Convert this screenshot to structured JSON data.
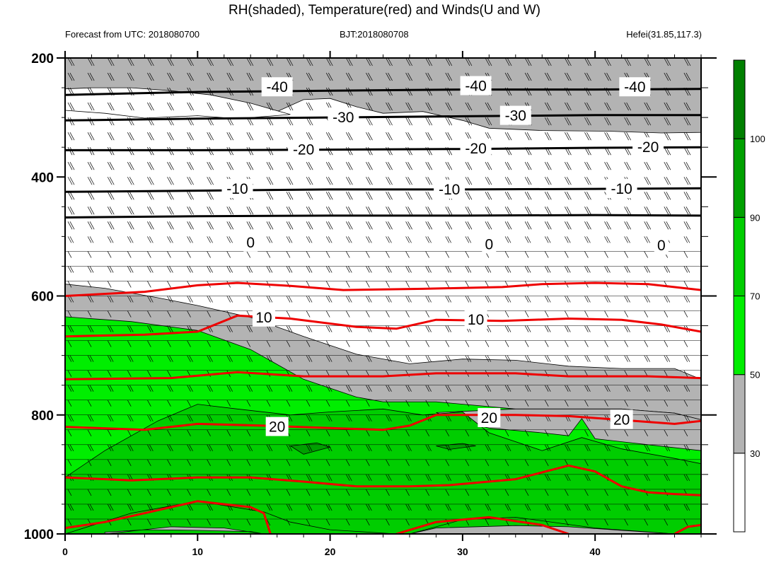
{
  "header": {
    "title": "RH(shaded), Temperature(red) and Winds(U and W)",
    "forecast": "Forecast from UTC: 2018080700",
    "bjt": "BJT:2018080708",
    "location": "Hefei(31.85,117.3)"
  },
  "chart_data": {
    "type": "heatmap",
    "x": {
      "min": 0,
      "max": 48,
      "ticks": [
        0,
        10,
        20,
        30,
        40
      ]
    },
    "y": {
      "min": 200,
      "max": 1000,
      "inverted": true,
      "ticks": [
        200,
        400,
        600,
        800,
        1000
      ]
    },
    "colorbar": {
      "levels": [
        30,
        50,
        70,
        90,
        100
      ],
      "colors": [
        "#ffffff",
        "#b3b3b3",
        "#00ee00",
        "#00cd00",
        "#00a000",
        "#007f00"
      ]
    },
    "shading": [
      {
        "level": 50,
        "color": "#b3b3b3",
        "pts": [
          [
            0,
            200
          ],
          [
            48,
            200
          ],
          [
            48,
            325
          ],
          [
            45,
            326
          ],
          [
            41,
            323
          ],
          [
            36,
            322
          ],
          [
            32,
            318
          ],
          [
            30,
            305
          ],
          [
            27,
            290
          ],
          [
            24,
            293
          ],
          [
            22,
            282
          ],
          [
            20,
            268
          ],
          [
            18,
            270
          ],
          [
            16,
            290
          ],
          [
            13,
            300
          ],
          [
            10,
            295
          ],
          [
            6,
            300
          ],
          [
            3,
            290
          ],
          [
            0,
            285
          ]
        ]
      },
      {
        "level": 50,
        "color": "#b3b3b3",
        "pts": [
          [
            0,
            580
          ],
          [
            3,
            587
          ],
          [
            7,
            603
          ],
          [
            10,
            616
          ],
          [
            14,
            636
          ],
          [
            18,
            668
          ],
          [
            22,
            698
          ],
          [
            26,
            714
          ],
          [
            30,
            706
          ],
          [
            34,
            708
          ],
          [
            38,
            718
          ],
          [
            42,
            722
          ],
          [
            46,
            722
          ],
          [
            48,
            740
          ],
          [
            48,
            1000
          ],
          [
            0,
            1000
          ]
        ]
      },
      {
        "level": 50,
        "color": "#ffffff",
        "pts": [
          [
            0,
            288
          ],
          [
            3,
            293
          ],
          [
            6,
            301
          ],
          [
            10,
            297
          ],
          [
            13,
            302
          ],
          [
            17,
            295
          ],
          [
            14,
            276
          ],
          [
            11,
            262
          ],
          [
            8,
            255
          ],
          [
            5,
            250
          ],
          [
            2,
            250
          ],
          [
            0,
            252
          ]
        ]
      },
      {
        "level": 50,
        "color": "#ffffff",
        "pts": [
          [
            3,
            1000
          ],
          [
            8,
            988
          ],
          [
            12,
            990
          ],
          [
            15,
            1000
          ]
        ]
      },
      {
        "level": 70,
        "color": "#00ee00",
        "pts": [
          [
            0,
            635
          ],
          [
            5,
            643
          ],
          [
            10,
            658
          ],
          [
            14,
            690
          ],
          [
            18,
            740
          ],
          [
            22,
            770
          ],
          [
            24,
            778
          ],
          [
            28,
            778
          ],
          [
            34,
            790
          ],
          [
            38,
            790
          ],
          [
            42,
            790
          ],
          [
            46,
            797
          ],
          [
            48,
            808
          ],
          [
            48,
            1000
          ],
          [
            0,
            1000
          ]
        ]
      },
      {
        "level": 70,
        "color": "#b3b3b3",
        "pts": [
          [
            32,
            822
          ],
          [
            36,
            830
          ],
          [
            38,
            835
          ],
          [
            39,
            806
          ],
          [
            40,
            840
          ],
          [
            44,
            850
          ],
          [
            48,
            860
          ],
          [
            48,
            808
          ],
          [
            46,
            797
          ],
          [
            42,
            790
          ],
          [
            38,
            790
          ],
          [
            34,
            790
          ],
          [
            28,
            796
          ],
          [
            30,
            812
          ]
        ]
      },
      {
        "level": 90,
        "color": "#00cd00",
        "pts": [
          [
            0,
            905
          ],
          [
            3,
            860
          ],
          [
            7,
            810
          ],
          [
            10,
            782
          ],
          [
            13,
            790
          ],
          [
            17,
            800
          ],
          [
            20,
            795
          ],
          [
            24,
            790
          ],
          [
            27,
            800
          ],
          [
            30,
            795
          ],
          [
            32,
            830
          ],
          [
            36,
            860
          ],
          [
            39,
            838
          ],
          [
            42,
            857
          ],
          [
            46,
            873
          ],
          [
            48,
            882
          ],
          [
            48,
            1000
          ],
          [
            0,
            1000
          ]
        ]
      },
      {
        "level": 95,
        "color": "#00a000",
        "pts": [
          [
            17,
            852
          ],
          [
            19,
            847
          ],
          [
            20,
            854
          ],
          [
            18,
            866
          ]
        ]
      },
      {
        "level": 95,
        "color": "#00a000",
        "pts": [
          [
            28,
            852
          ],
          [
            30,
            848
          ],
          [
            31,
            852
          ],
          [
            29,
            858
          ]
        ]
      },
      {
        "level": 95,
        "color": "#00cd00",
        "pts": [
          [
            0,
            1000
          ],
          [
            5,
            965
          ],
          [
            10,
            945
          ],
          [
            15,
            963
          ],
          [
            17,
            980
          ],
          [
            20,
            993
          ],
          [
            25,
            1000
          ]
        ]
      },
      {
        "level": 95,
        "color": "#00cd00",
        "pts": [
          [
            26,
            1000
          ],
          [
            30,
            976
          ],
          [
            34,
            972
          ],
          [
            40,
            990
          ],
          [
            46,
            1000
          ]
        ]
      },
      {
        "level": 95,
        "color": "#b3b3b3",
        "pts": [
          [
            3,
            1000
          ],
          [
            8,
            988
          ],
          [
            12,
            990
          ],
          [
            15,
            1000
          ],
          [
            14,
            996
          ],
          [
            10,
            994
          ],
          [
            6,
            993
          ],
          [
            3,
            997
          ]
        ]
      },
      {
        "level": 95,
        "color": "#b3b3b3",
        "pts": [
          [
            26,
            1000
          ],
          [
            28,
            990
          ],
          [
            34,
            986
          ],
          [
            38,
            988
          ],
          [
            46,
            1000
          ]
        ]
      }
    ],
    "isotherms": [
      {
        "color": "#000000",
        "label": "-40",
        "labels_at": [
          [
            16,
            249
          ],
          [
            31,
            247
          ],
          [
            43,
            249
          ]
        ],
        "pts": [
          [
            0,
            262
          ],
          [
            10,
            257
          ],
          [
            20,
            255
          ],
          [
            30,
            253
          ],
          [
            40,
            253
          ],
          [
            48,
            252
          ]
        ]
      },
      {
        "color": "#000000",
        "label": "-30",
        "labels_at": [
          [
            21,
            300
          ],
          [
            34,
            297
          ]
        ],
        "pts": [
          [
            0,
            305
          ],
          [
            10,
            302
          ],
          [
            20,
            300
          ],
          [
            30,
            298
          ],
          [
            40,
            296
          ],
          [
            48,
            296
          ]
        ]
      },
      {
        "color": "#000000",
        "label": "-20",
        "labels_at": [
          [
            18,
            354
          ],
          [
            31,
            352
          ],
          [
            44,
            350
          ]
        ],
        "pts": [
          [
            0,
            355
          ],
          [
            10,
            355
          ],
          [
            20,
            354
          ],
          [
            30,
            353
          ],
          [
            40,
            351
          ],
          [
            48,
            350
          ]
        ]
      },
      {
        "color": "#000000",
        "label": "-10",
        "labels_at": [
          [
            13,
            420
          ],
          [
            29,
            421
          ],
          [
            42,
            420
          ]
        ],
        "pts": [
          [
            0,
            425
          ],
          [
            10,
            423
          ],
          [
            20,
            421
          ],
          [
            30,
            421
          ],
          [
            40,
            420
          ],
          [
            48,
            419
          ]
        ]
      },
      {
        "color": "#000000",
        "label": "0",
        "labels_at": [
          [
            14,
            510
          ],
          [
            32,
            513
          ],
          [
            45,
            515
          ]
        ],
        "pts": [
          [
            0,
            468
          ],
          [
            10,
            466
          ],
          [
            20,
            465
          ],
          [
            30,
            465
          ],
          [
            40,
            464
          ],
          [
            48,
            465
          ]
        ]
      },
      {
        "color": "#ee0000",
        "label": "",
        "labels_at": [],
        "pts": [
          [
            0,
            600
          ],
          [
            6,
            593
          ],
          [
            10,
            582
          ],
          [
            13,
            578
          ],
          [
            17,
            583
          ],
          [
            21,
            590
          ],
          [
            27,
            588
          ],
          [
            33,
            585
          ],
          [
            36,
            580
          ],
          [
            40,
            578
          ],
          [
            44,
            580
          ],
          [
            48,
            590
          ]
        ]
      },
      {
        "color": "#ee0000",
        "label": "10",
        "labels_at": [
          [
            15,
            636
          ],
          [
            31,
            640
          ]
        ],
        "pts": [
          [
            0,
            668
          ],
          [
            6,
            665
          ],
          [
            10,
            660
          ],
          [
            13,
            633
          ],
          [
            17,
            638
          ],
          [
            22,
            652
          ],
          [
            25,
            655
          ],
          [
            28,
            640
          ],
          [
            33,
            642
          ],
          [
            38,
            638
          ],
          [
            42,
            640
          ],
          [
            45,
            648
          ],
          [
            48,
            660
          ]
        ]
      },
      {
        "color": "#ee0000",
        "label": "",
        "labels_at": [],
        "pts": [
          [
            0,
            740
          ],
          [
            8,
            738
          ],
          [
            13,
            728
          ],
          [
            18,
            735
          ],
          [
            24,
            735
          ],
          [
            28,
            730
          ],
          [
            34,
            730
          ],
          [
            38,
            735
          ],
          [
            44,
            735
          ],
          [
            48,
            738
          ]
        ]
      },
      {
        "color": "#ee0000",
        "label": "20",
        "labels_at": [
          [
            16,
            820
          ],
          [
            32,
            805
          ],
          [
            42,
            808
          ]
        ],
        "pts": [
          [
            0,
            820
          ],
          [
            6,
            825
          ],
          [
            10,
            815
          ],
          [
            15,
            818
          ],
          [
            20,
            822
          ],
          [
            24,
            825
          ],
          [
            26,
            818
          ],
          [
            28,
            800
          ],
          [
            34,
            800
          ],
          [
            38,
            802
          ],
          [
            43,
            810
          ],
          [
            46,
            815
          ],
          [
            48,
            810
          ]
        ]
      },
      {
        "color": "#ee0000",
        "label": "",
        "labels_at": [],
        "pts": [
          [
            0,
            905
          ],
          [
            5,
            910
          ],
          [
            10,
            905
          ],
          [
            14,
            905
          ],
          [
            18,
            912
          ],
          [
            22,
            920
          ],
          [
            26,
            920
          ],
          [
            29,
            918
          ],
          [
            34,
            908
          ],
          [
            38,
            885
          ],
          [
            40,
            895
          ],
          [
            42,
            920
          ],
          [
            44,
            930
          ],
          [
            46,
            933
          ],
          [
            48,
            935
          ]
        ]
      },
      {
        "color": "#ee0000",
        "label": "",
        "labels_at": [],
        "pts": [
          [
            0,
            990
          ],
          [
            3,
            980
          ],
          [
            6,
            965
          ],
          [
            10,
            945
          ],
          [
            14,
            955
          ],
          [
            15,
            965
          ],
          [
            15.5,
            1000
          ]
        ]
      },
      {
        "color": "#ee0000",
        "label": "",
        "labels_at": [],
        "pts": [
          [
            25,
            1000
          ],
          [
            28,
            980
          ],
          [
            32,
            972
          ],
          [
            36,
            985
          ],
          [
            38,
            1000
          ]
        ]
      },
      {
        "color": "#ee0000",
        "label": "",
        "labels_at": [],
        "pts": [
          [
            46,
            1000
          ],
          [
            47,
            988
          ],
          [
            48,
            985
          ]
        ]
      }
    ],
    "wind_levels": [
      200,
      225,
      250,
      275,
      300,
      325,
      350,
      375,
      400,
      425,
      450,
      475,
      500,
      525,
      550,
      575,
      600,
      625,
      650,
      675,
      700,
      725,
      750,
      775,
      800,
      825,
      850,
      875,
      900,
      925,
      950,
      975,
      1000
    ]
  }
}
